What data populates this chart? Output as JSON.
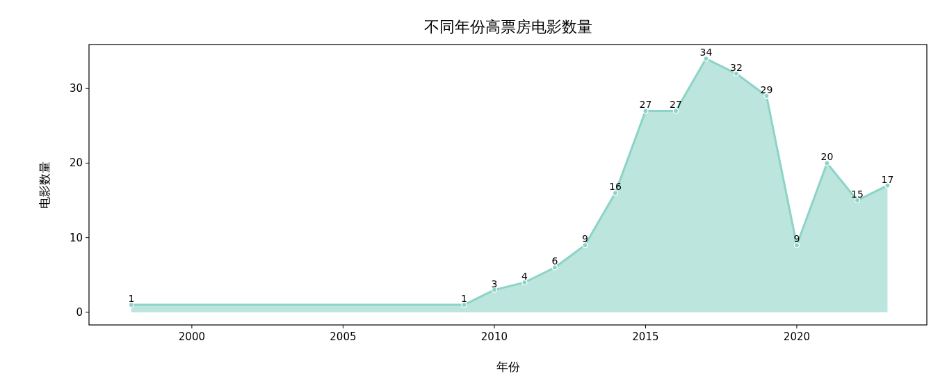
{
  "chart_data": {
    "type": "area",
    "title": "不同年份高票房电影数量",
    "xlabel": "年份",
    "ylabel": "电影数量",
    "x": [
      1998,
      2009,
      2010,
      2011,
      2012,
      2013,
      2014,
      2015,
      2016,
      2017,
      2018,
      2019,
      2020,
      2021,
      2022,
      2023
    ],
    "series": [
      {
        "color": "#8dd3c7",
        "values": [
          1,
          1,
          3,
          4,
          6,
          9,
          16,
          27,
          27,
          34,
          32,
          29,
          9,
          20,
          15,
          17
        ]
      }
    ],
    "xlim": [
      1996.6,
      2024.3
    ],
    "xticks": [
      2000,
      2005,
      2010,
      2015,
      2020
    ],
    "ylim": [
      -1.7,
      35.9
    ],
    "yticks": [
      0,
      10,
      20,
      30
    ],
    "marker": "circle",
    "data_labels": true,
    "grid": false
  }
}
